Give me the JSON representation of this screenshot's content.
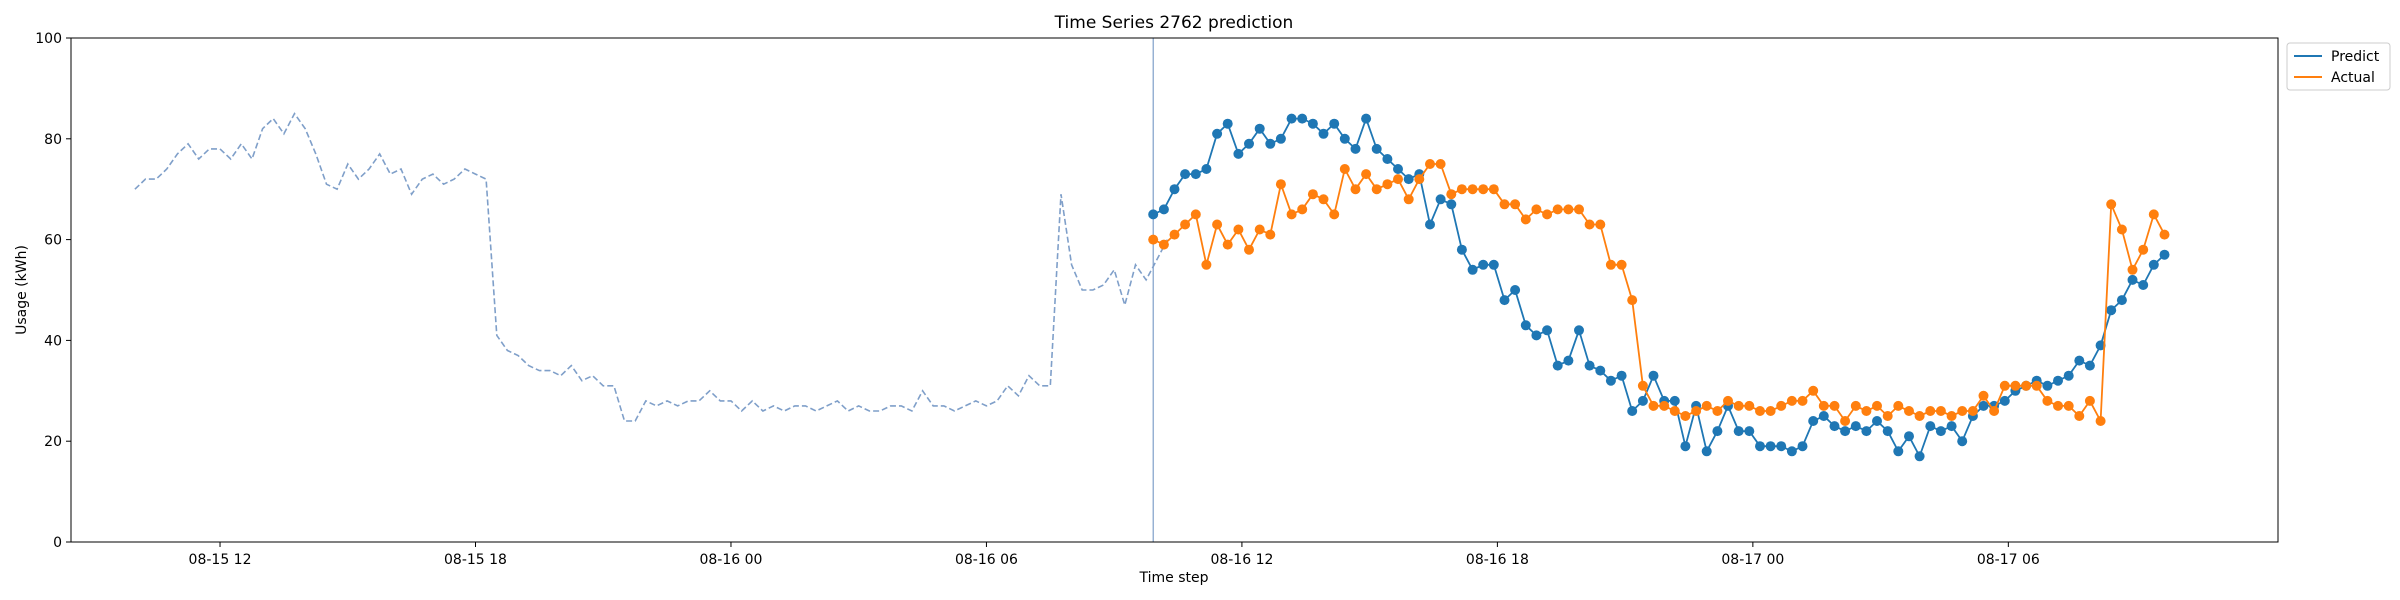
{
  "chart_data": {
    "type": "line",
    "title": "Time Series 2762 prediction",
    "xlabel": "Time step",
    "ylabel": "Usage (kWh)",
    "ylim": [
      0,
      100
    ],
    "yticks": [
      0,
      20,
      40,
      60,
      80,
      100
    ],
    "xlim": [
      "2024-08-15 08:30",
      "2024-08-17 12:20"
    ],
    "xticks": [
      {
        "t": "2024-08-15 12:00",
        "label": "08-15 12"
      },
      {
        "t": "2024-08-15 18:00",
        "label": "08-15 18"
      },
      {
        "t": "2024-08-16 00:00",
        "label": "08-16 00"
      },
      {
        "t": "2024-08-16 06:00",
        "label": "08-16 06"
      },
      {
        "t": "2024-08-16 12:00",
        "label": "08-16 12"
      },
      {
        "t": "2024-08-16 18:00",
        "label": "08-16 18"
      },
      {
        "t": "2024-08-17 00:00",
        "label": "08-17 00"
      },
      {
        "t": "2024-08-17 06:00",
        "label": "08-17 06"
      }
    ],
    "grid": false,
    "legend_position": "top-right-outside",
    "forecast_start": "2024-08-16 09:55",
    "step_minutes": 15,
    "history": {
      "start": "2024-08-15 10:00",
      "color": "#7f9fc9",
      "style": "dashed",
      "values": [
        70,
        72,
        72,
        74,
        77,
        79,
        76,
        78,
        78,
        76,
        79,
        76,
        82,
        84,
        81,
        85,
        82,
        77,
        71,
        70,
        75,
        72,
        74,
        77,
        73,
        74,
        69,
        72,
        73,
        71,
        72,
        74,
        73,
        72,
        41,
        38,
        37,
        35,
        34,
        34,
        33,
        35,
        32,
        33,
        31,
        31,
        24,
        24,
        28,
        27,
        28,
        27,
        28,
        28,
        30,
        28,
        28,
        26,
        28,
        26,
        27,
        26,
        27,
        27,
        26,
        27,
        28,
        26,
        27,
        26,
        26,
        27,
        27,
        26,
        30,
        27,
        27,
        26,
        27,
        28,
        27,
        28,
        31,
        29,
        33,
        31,
        31,
        69,
        55,
        50,
        50,
        51,
        54,
        47,
        55,
        52,
        56,
        60
      ]
    },
    "series": [
      {
        "name": "Predict",
        "color": "#1f77b4",
        "start": "2024-08-16 09:55",
        "values": [
          65,
          66,
          70,
          73,
          73,
          74,
          81,
          83,
          77,
          79,
          82,
          79,
          80,
          84,
          84,
          83,
          81,
          83,
          80,
          78,
          84,
          78,
          76,
          74,
          72,
          73,
          63,
          68,
          67,
          58,
          54,
          55,
          55,
          48,
          50,
          43,
          41,
          42,
          35,
          36,
          42,
          35,
          34,
          32,
          33,
          26,
          28,
          33,
          28,
          28,
          19,
          27,
          18,
          22,
          27,
          22,
          22,
          19,
          19,
          19,
          18,
          19,
          24,
          25,
          23,
          22,
          23,
          22,
          24,
          22,
          18,
          21,
          17,
          23,
          22,
          23,
          20,
          25,
          27,
          27,
          28,
          30,
          31,
          32,
          31,
          32,
          33,
          36,
          35,
          39,
          46,
          48,
          52,
          51,
          55,
          57
        ]
      },
      {
        "name": "Actual",
        "color": "#ff7f0e",
        "start": "2024-08-16 09:55",
        "values": [
          60,
          59,
          61,
          63,
          65,
          55,
          63,
          59,
          62,
          58,
          62,
          61,
          71,
          65,
          66,
          69,
          68,
          65,
          74,
          70,
          73,
          70,
          71,
          72,
          68,
          72,
          75,
          75,
          69,
          70,
          70,
          70,
          70,
          67,
          67,
          64,
          66,
          65,
          66,
          66,
          66,
          63,
          63,
          55,
          55,
          48,
          31,
          27,
          27,
          26,
          25,
          26,
          27,
          26,
          28,
          27,
          27,
          26,
          26,
          27,
          28,
          28,
          30,
          27,
          27,
          24,
          27,
          26,
          27,
          25,
          27,
          26,
          25,
          26,
          26,
          25,
          26,
          26,
          29,
          26,
          31,
          31,
          31,
          31,
          28,
          27,
          27,
          25,
          28,
          24,
          67,
          62,
          54,
          58,
          65,
          61
        ]
      }
    ]
  }
}
